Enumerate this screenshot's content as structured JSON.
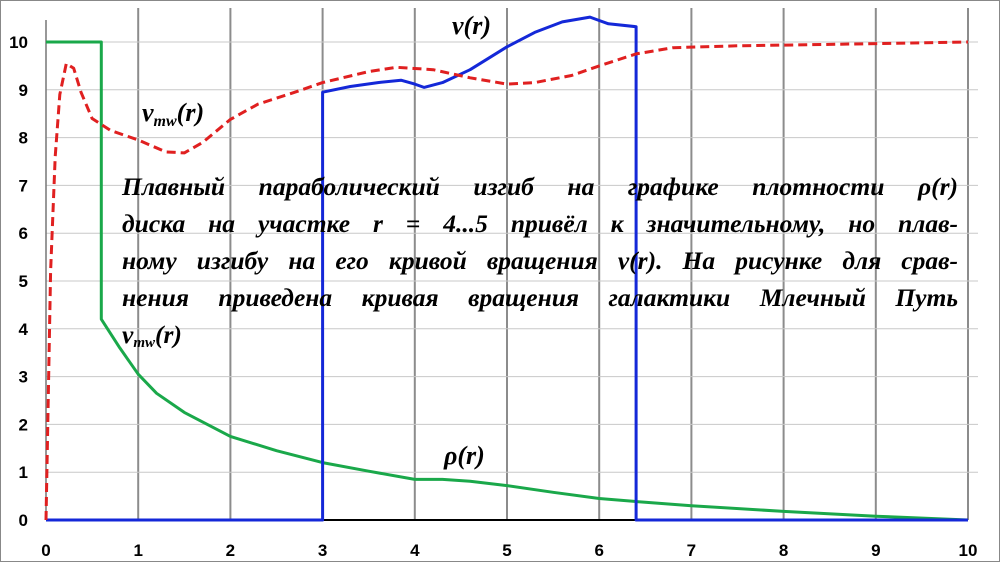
{
  "chart_data": {
    "type": "line",
    "xlim": [
      0,
      10
    ],
    "ylim": [
      0,
      10
    ],
    "x_ticks": [
      "0",
      "1",
      "2",
      "3",
      "4",
      "5",
      "6",
      "7",
      "8",
      "9",
      "10"
    ],
    "y_ticks": [
      "0",
      "1",
      "2",
      "3",
      "4",
      "5",
      "6",
      "7",
      "8",
      "9",
      "10"
    ],
    "grid": true,
    "series": [
      {
        "name": "ρ(r)",
        "color": "#1aa84a",
        "style": "solid",
        "points": [
          [
            0,
            10
          ],
          [
            0.6,
            10
          ],
          [
            0.6,
            4.2
          ],
          [
            0.8,
            3.6
          ],
          [
            1.0,
            3.05
          ],
          [
            1.2,
            2.65
          ],
          [
            1.5,
            2.25
          ],
          [
            2.0,
            1.75
          ],
          [
            2.5,
            1.45
          ],
          [
            3.0,
            1.2
          ],
          [
            3.5,
            1.02
          ],
          [
            4.0,
            0.85
          ],
          [
            4.3,
            0.85
          ],
          [
            4.6,
            0.81
          ],
          [
            5.0,
            0.72
          ],
          [
            5.5,
            0.58
          ],
          [
            6.0,
            0.45
          ],
          [
            6.5,
            0.37
          ],
          [
            7.0,
            0.3
          ],
          [
            8.0,
            0.18
          ],
          [
            9.0,
            0.08
          ],
          [
            10.0,
            0.0
          ]
        ]
      },
      {
        "name": "v(r)",
        "color": "#1428d8",
        "style": "solid",
        "points": [
          [
            0,
            0
          ],
          [
            3.0,
            0
          ],
          [
            3.0,
            8.95
          ],
          [
            3.3,
            9.07
          ],
          [
            3.6,
            9.15
          ],
          [
            3.85,
            9.2
          ],
          [
            4.0,
            9.12
          ],
          [
            4.1,
            9.05
          ],
          [
            4.3,
            9.15
          ],
          [
            4.6,
            9.42
          ],
          [
            5.0,
            9.9
          ],
          [
            5.3,
            10.2
          ],
          [
            5.6,
            10.42
          ],
          [
            5.9,
            10.52
          ],
          [
            6.0,
            10.45
          ],
          [
            6.1,
            10.38
          ],
          [
            6.4,
            10.32
          ],
          [
            6.4,
            0
          ],
          [
            10,
            0
          ]
        ]
      },
      {
        "name": "v_mw(r)",
        "color": "#e02020",
        "style": "dashed",
        "points": [
          [
            0,
            0
          ],
          [
            0.05,
            5.2
          ],
          [
            0.1,
            7.6
          ],
          [
            0.15,
            8.9
          ],
          [
            0.22,
            9.55
          ],
          [
            0.3,
            9.45
          ],
          [
            0.38,
            8.95
          ],
          [
            0.5,
            8.4
          ],
          [
            0.7,
            8.15
          ],
          [
            1.0,
            7.95
          ],
          [
            1.3,
            7.7
          ],
          [
            1.5,
            7.68
          ],
          [
            1.7,
            7.9
          ],
          [
            2.0,
            8.38
          ],
          [
            2.3,
            8.7
          ],
          [
            2.7,
            8.95
          ],
          [
            3.0,
            9.15
          ],
          [
            3.5,
            9.38
          ],
          [
            3.8,
            9.47
          ],
          [
            4.2,
            9.42
          ],
          [
            4.6,
            9.25
          ],
          [
            5.0,
            9.12
          ],
          [
            5.3,
            9.15
          ],
          [
            5.7,
            9.3
          ],
          [
            6.0,
            9.5
          ],
          [
            6.4,
            9.75
          ],
          [
            6.8,
            9.88
          ],
          [
            7.5,
            9.92
          ],
          [
            8.5,
            9.95
          ],
          [
            10.0,
            10.0
          ]
        ]
      }
    ],
    "annotations": {
      "v_label_main": "v",
      "v_label_arg": "(r)",
      "vmw_label_main": "v",
      "vmw_label_sub": "mw",
      "vmw_label_arg": "(r)",
      "rho_label": "ρ(r)"
    }
  },
  "caption": {
    "line1": "Плавный параболический изгиб на графике плотности ρ(r)",
    "line2": "диска на участке r = 4...5 привёл к значительному, но плав-",
    "line3": "ному изгибу на его кривой вращения v(r). На рисунке для срав-",
    "line4": "нения приведена кривая вращения галактики Млечный Путь",
    "line5_main": "v",
    "line5_sub": "mw",
    "line5_arg": "(r)"
  }
}
